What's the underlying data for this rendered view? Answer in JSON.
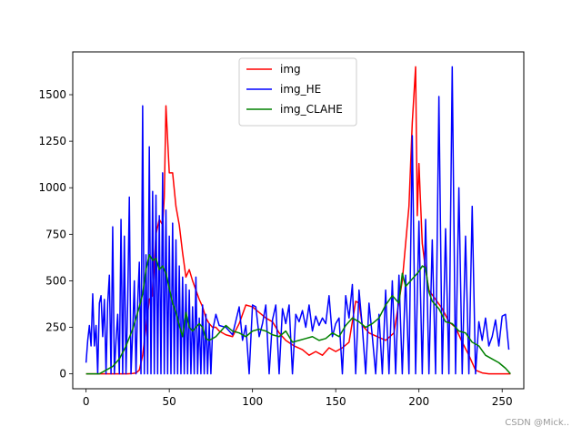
{
  "chart_data": {
    "type": "line",
    "title": "",
    "xlabel": "",
    "ylabel": "",
    "xlim": [
      -8,
      263
    ],
    "ylim": [
      -80,
      1730
    ],
    "xticks": [
      0,
      50,
      100,
      150,
      200,
      250
    ],
    "yticks": [
      0,
      250,
      500,
      750,
      1000,
      1250,
      1500
    ],
    "grid": false,
    "legend_position": "upper center",
    "series": [
      {
        "name": "img",
        "color": "#ff0000",
        "points": [
          [
            0,
            0
          ],
          [
            5,
            0
          ],
          [
            10,
            0
          ],
          [
            15,
            0
          ],
          [
            20,
            0
          ],
          [
            25,
            0
          ],
          [
            28,
            2
          ],
          [
            30,
            5
          ],
          [
            32,
            20
          ],
          [
            34,
            100
          ],
          [
            36,
            250
          ],
          [
            38,
            400
          ],
          [
            40,
            420
          ],
          [
            42,
            750
          ],
          [
            44,
            830
          ],
          [
            46,
            800
          ],
          [
            47,
            950
          ],
          [
            48,
            1440
          ],
          [
            50,
            1080
          ],
          [
            52,
            1080
          ],
          [
            54,
            900
          ],
          [
            56,
            800
          ],
          [
            58,
            650
          ],
          [
            60,
            520
          ],
          [
            62,
            560
          ],
          [
            64,
            500
          ],
          [
            66,
            450
          ],
          [
            68,
            400
          ],
          [
            70,
            360
          ],
          [
            72,
            300
          ],
          [
            74,
            270
          ],
          [
            76,
            250
          ],
          [
            78,
            250
          ],
          [
            80,
            230
          ],
          [
            84,
            210
          ],
          [
            88,
            200
          ],
          [
            92,
            270
          ],
          [
            96,
            370
          ],
          [
            100,
            360
          ],
          [
            104,
            330
          ],
          [
            108,
            300
          ],
          [
            112,
            280
          ],
          [
            116,
            220
          ],
          [
            120,
            180
          ],
          [
            125,
            150
          ],
          [
            130,
            130
          ],
          [
            134,
            100
          ],
          [
            138,
            120
          ],
          [
            142,
            100
          ],
          [
            146,
            140
          ],
          [
            150,
            120
          ],
          [
            154,
            140
          ],
          [
            158,
            170
          ],
          [
            162,
            390
          ],
          [
            164,
            380
          ],
          [
            166,
            260
          ],
          [
            170,
            220
          ],
          [
            175,
            200
          ],
          [
            180,
            180
          ],
          [
            185,
            220
          ],
          [
            190,
            500
          ],
          [
            194,
            900
          ],
          [
            196,
            1350
          ],
          [
            198,
            1650
          ],
          [
            199,
            850
          ],
          [
            200,
            1130
          ],
          [
            202,
            700
          ],
          [
            204,
            560
          ],
          [
            206,
            450
          ],
          [
            210,
            400
          ],
          [
            214,
            350
          ],
          [
            218,
            280
          ],
          [
            222,
            250
          ],
          [
            226,
            170
          ],
          [
            230,
            100
          ],
          [
            234,
            20
          ],
          [
            238,
            5
          ],
          [
            242,
            0
          ],
          [
            250,
            0
          ],
          [
            255,
            0
          ]
        ]
      },
      {
        "name": "img_HE",
        "color": "#0000ff",
        "points": [
          [
            0,
            60
          ],
          [
            1,
            180
          ],
          [
            2,
            260
          ],
          [
            3,
            150
          ],
          [
            4,
            430
          ],
          [
            5,
            150
          ],
          [
            6,
            260
          ],
          [
            7,
            0
          ],
          [
            8,
            380
          ],
          [
            9,
            420
          ],
          [
            10,
            200
          ],
          [
            11,
            400
          ],
          [
            12,
            0
          ],
          [
            13,
            380
          ],
          [
            14,
            530
          ],
          [
            15,
            0
          ],
          [
            16,
            790
          ],
          [
            17,
            0
          ],
          [
            18,
            180
          ],
          [
            19,
            320
          ],
          [
            20,
            0
          ],
          [
            21,
            830
          ],
          [
            22,
            0
          ],
          [
            23,
            740
          ],
          [
            24,
            0
          ],
          [
            25,
            380
          ],
          [
            26,
            950
          ],
          [
            27,
            0
          ],
          [
            28,
            220
          ],
          [
            29,
            500
          ],
          [
            30,
            0
          ],
          [
            31,
            380
          ],
          [
            32,
            600
          ],
          [
            33,
            0
          ],
          [
            34,
            1440
          ],
          [
            35,
            0
          ],
          [
            36,
            640
          ],
          [
            37,
            0
          ],
          [
            38,
            1220
          ],
          [
            39,
            0
          ],
          [
            40,
            980
          ],
          [
            41,
            0
          ],
          [
            42,
            960
          ],
          [
            43,
            0
          ],
          [
            44,
            850
          ],
          [
            45,
            0
          ],
          [
            46,
            1080
          ],
          [
            47,
            0
          ],
          [
            48,
            880
          ],
          [
            49,
            0
          ],
          [
            50,
            740
          ],
          [
            51,
            0
          ],
          [
            52,
            810
          ],
          [
            53,
            0
          ],
          [
            54,
            720
          ],
          [
            55,
            0
          ],
          [
            56,
            580
          ],
          [
            57,
            0
          ],
          [
            58,
            520
          ],
          [
            59,
            0
          ],
          [
            60,
            480
          ],
          [
            61,
            0
          ],
          [
            62,
            450
          ],
          [
            63,
            0
          ],
          [
            64,
            360
          ],
          [
            65,
            0
          ],
          [
            66,
            520
          ],
          [
            67,
            0
          ],
          [
            68,
            300
          ],
          [
            69,
            0
          ],
          [
            70,
            370
          ],
          [
            71,
            0
          ],
          [
            72,
            320
          ],
          [
            73,
            0
          ],
          [
            74,
            270
          ],
          [
            75,
            0
          ],
          [
            76,
            230
          ],
          [
            78,
            320
          ],
          [
            80,
            260
          ],
          [
            84,
            250
          ],
          [
            88,
            210
          ],
          [
            92,
            360
          ],
          [
            94,
            180
          ],
          [
            96,
            260
          ],
          [
            98,
            0
          ],
          [
            100,
            370
          ],
          [
            102,
            360
          ],
          [
            104,
            200
          ],
          [
            106,
            270
          ],
          [
            108,
            370
          ],
          [
            110,
            0
          ],
          [
            112,
            290
          ],
          [
            114,
            370
          ],
          [
            116,
            0
          ],
          [
            118,
            350
          ],
          [
            120,
            270
          ],
          [
            122,
            370
          ],
          [
            124,
            0
          ],
          [
            126,
            320
          ],
          [
            128,
            280
          ],
          [
            130,
            340
          ],
          [
            132,
            250
          ],
          [
            134,
            370
          ],
          [
            136,
            230
          ],
          [
            138,
            310
          ],
          [
            140,
            260
          ],
          [
            142,
            300
          ],
          [
            144,
            270
          ],
          [
            146,
            420
          ],
          [
            148,
            200
          ],
          [
            150,
            270
          ],
          [
            152,
            300
          ],
          [
            154,
            0
          ],
          [
            156,
            420
          ],
          [
            158,
            300
          ],
          [
            160,
            480
          ],
          [
            162,
            0
          ],
          [
            164,
            450
          ],
          [
            166,
            250
          ],
          [
            168,
            0
          ],
          [
            170,
            380
          ],
          [
            172,
            200
          ],
          [
            174,
            0
          ],
          [
            176,
            320
          ],
          [
            178,
            0
          ],
          [
            180,
            450
          ],
          [
            182,
            0
          ],
          [
            184,
            500
          ],
          [
            186,
            0
          ],
          [
            188,
            530
          ],
          [
            190,
            0
          ],
          [
            192,
            530
          ],
          [
            194,
            0
          ],
          [
            196,
            1280
          ],
          [
            198,
            0
          ],
          [
            200,
            820
          ],
          [
            202,
            0
          ],
          [
            204,
            830
          ],
          [
            206,
            0
          ],
          [
            208,
            720
          ],
          [
            210,
            0
          ],
          [
            212,
            1490
          ],
          [
            214,
            0
          ],
          [
            216,
            780
          ],
          [
            218,
            0
          ],
          [
            220,
            1650
          ],
          [
            222,
            0
          ],
          [
            224,
            1000
          ],
          [
            226,
            0
          ],
          [
            228,
            740
          ],
          [
            230,
            0
          ],
          [
            232,
            900
          ],
          [
            234,
            0
          ],
          [
            236,
            280
          ],
          [
            238,
            180
          ],
          [
            240,
            300
          ],
          [
            242,
            150
          ],
          [
            244,
            200
          ],
          [
            246,
            290
          ],
          [
            248,
            150
          ],
          [
            250,
            310
          ],
          [
            252,
            320
          ],
          [
            254,
            130
          ]
        ]
      },
      {
        "name": "img_CLAHE",
        "color": "#008000",
        "points": [
          [
            0,
            0
          ],
          [
            4,
            0
          ],
          [
            8,
            0
          ],
          [
            12,
            20
          ],
          [
            16,
            40
          ],
          [
            20,
            80
          ],
          [
            24,
            150
          ],
          [
            28,
            240
          ],
          [
            32,
            360
          ],
          [
            34,
            430
          ],
          [
            36,
            560
          ],
          [
            38,
            640
          ],
          [
            40,
            610
          ],
          [
            42,
            620
          ],
          [
            44,
            560
          ],
          [
            46,
            580
          ],
          [
            48,
            540
          ],
          [
            50,
            460
          ],
          [
            52,
            380
          ],
          [
            54,
            330
          ],
          [
            56,
            260
          ],
          [
            58,
            200
          ],
          [
            60,
            330
          ],
          [
            62,
            250
          ],
          [
            64,
            230
          ],
          [
            66,
            250
          ],
          [
            68,
            270
          ],
          [
            70,
            250
          ],
          [
            72,
            190
          ],
          [
            74,
            180
          ],
          [
            76,
            190
          ],
          [
            78,
            200
          ],
          [
            80,
            220
          ],
          [
            84,
            260
          ],
          [
            88,
            230
          ],
          [
            92,
            220
          ],
          [
            96,
            200
          ],
          [
            100,
            230
          ],
          [
            104,
            240
          ],
          [
            108,
            230
          ],
          [
            112,
            210
          ],
          [
            116,
            200
          ],
          [
            120,
            230
          ],
          [
            124,
            170
          ],
          [
            128,
            180
          ],
          [
            132,
            190
          ],
          [
            136,
            200
          ],
          [
            140,
            180
          ],
          [
            144,
            190
          ],
          [
            148,
            220
          ],
          [
            152,
            200
          ],
          [
            156,
            260
          ],
          [
            160,
            300
          ],
          [
            164,
            280
          ],
          [
            168,
            250
          ],
          [
            172,
            270
          ],
          [
            176,
            300
          ],
          [
            180,
            370
          ],
          [
            184,
            420
          ],
          [
            188,
            380
          ],
          [
            190,
            540
          ],
          [
            192,
            470
          ],
          [
            196,
            510
          ],
          [
            200,
            550
          ],
          [
            202,
            580
          ],
          [
            204,
            570
          ],
          [
            206,
            440
          ],
          [
            208,
            390
          ],
          [
            212,
            350
          ],
          [
            216,
            280
          ],
          [
            220,
            270
          ],
          [
            224,
            230
          ],
          [
            228,
            220
          ],
          [
            232,
            170
          ],
          [
            236,
            150
          ],
          [
            240,
            100
          ],
          [
            244,
            80
          ],
          [
            248,
            60
          ],
          [
            252,
            30
          ],
          [
            255,
            0
          ]
        ]
      }
    ]
  },
  "watermark": "CSDN @Mick.."
}
